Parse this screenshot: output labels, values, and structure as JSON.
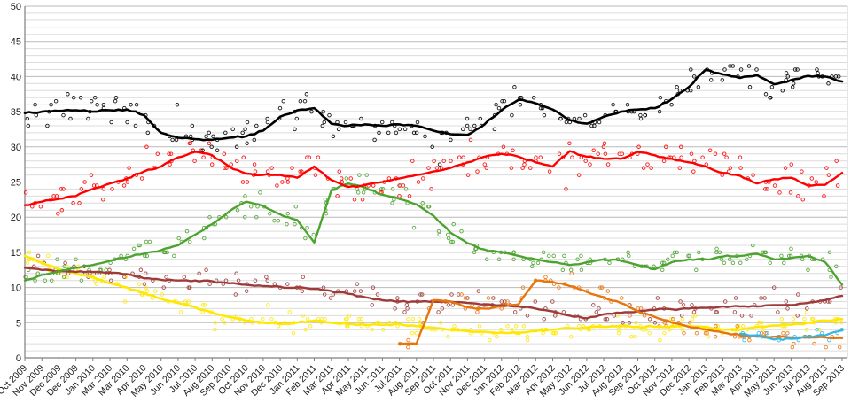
{
  "page": {
    "background": "#ffffff",
    "plot_background": "#ffffff"
  },
  "chart_data": {
    "type": "scatter",
    "subtype": "poll-scatter-with-trend-lines",
    "title": "",
    "legend": "none",
    "grid": "horizontal, minor every 1, labeled major every 5",
    "ylim": [
      0,
      50
    ],
    "y_tick_labels": [
      "0",
      "5",
      "10",
      "15",
      "20",
      "25",
      "30",
      "35",
      "40",
      "45",
      "50"
    ],
    "gridline_minor_color": "#dcdcdc",
    "gridline_major_color": "#b9b9b9",
    "axis_color": "#7f7f7f",
    "right_border_color": "#cccccc",
    "x_tick_labels": [
      "Oct 2009",
      "Nov 2009",
      "Dec 2009",
      "Dec 2009",
      "Jan 2010",
      "Mar 2010",
      "Mar 2010",
      "Apr 2010",
      "May 2010",
      "Jun 2010",
      "Jul 2010",
      "Aug 2010",
      "Sep 2010",
      "Oct 2010",
      "Nov 2010",
      "Dec 2010",
      "Jan 2011",
      "Feb 2011",
      "Mar 2011",
      "Apr 2011",
      "May 2011",
      "Jun 2011",
      "Jul 2011",
      "Aug 2011",
      "Sep 2011",
      "Oct 2011",
      "Nov 2011",
      "Dec 2011",
      "Jan 2012",
      "Feb 2012",
      "Mar 2012",
      "Apr 2012",
      "May 2012",
      "Jun 2012",
      "Jul 2012",
      "Aug 2012",
      "Sep 2012",
      "Oct 2012",
      "Nov 2012",
      "Dec 2012",
      "Jan 2013",
      "Feb 2013",
      "Mar 2013",
      "Apr 2013",
      "May 2013",
      "Jun 2013",
      "Jul 2013",
      "Aug 2013",
      "Sep 2013"
    ],
    "series": [
      {
        "name": "black",
        "color": "#000000",
        "values": [
          34.8,
          35.0,
          35.1,
          35.2,
          35.0,
          35.2,
          35.3,
          34.5,
          32.0,
          31.3,
          31.1,
          31.0,
          31.3,
          31.5,
          32.3,
          34.3,
          35.2,
          35.5,
          33.3,
          33.0,
          33.2,
          33.0,
          33.2,
          33.0,
          32.3,
          31.8,
          31.7,
          33.2,
          35.2,
          36.7,
          36.2,
          35.3,
          33.8,
          33.3,
          34.3,
          35.0,
          35.3,
          35.5,
          36.8,
          38.5,
          41.0,
          40.3,
          39.8,
          40.2,
          38.9,
          39.5,
          40.1,
          40.0,
          39.3
        ]
      },
      {
        "name": "red",
        "color": "#fe0000",
        "values": [
          21.7,
          22.2,
          22.6,
          23.0,
          24.0,
          24.8,
          25.5,
          26.5,
          27.2,
          28.5,
          29.3,
          28.8,
          27.2,
          26.2,
          26.0,
          26.0,
          25.6,
          27.2,
          25.3,
          24.3,
          24.6,
          25.0,
          25.5,
          26.0,
          26.5,
          27.0,
          27.8,
          28.6,
          29.0,
          28.6,
          27.8,
          27.2,
          29.4,
          28.6,
          28.3,
          28.3,
          29.3,
          28.8,
          28.3,
          27.8,
          27.2,
          26.3,
          25.9,
          24.8,
          25.4,
          25.6,
          24.5,
          24.6,
          26.3
        ]
      },
      {
        "name": "green",
        "color": "#4da32f",
        "values": [
          11.0,
          11.8,
          12.3,
          12.8,
          13.2,
          13.8,
          14.3,
          14.8,
          15.3,
          16.0,
          17.5,
          19.0,
          20.8,
          22.2,
          21.6,
          20.4,
          19.6,
          16.4,
          23.8,
          24.8,
          24.2,
          23.2,
          22.6,
          21.8,
          20.2,
          17.8,
          16.3,
          15.4,
          15.0,
          14.5,
          14.0,
          13.6,
          13.2,
          13.6,
          14.0,
          13.8,
          13.2,
          12.6,
          13.6,
          14.0,
          14.0,
          14.4,
          14.5,
          14.8,
          14.0,
          14.2,
          14.5,
          13.6,
          10.4
        ]
      },
      {
        "name": "dark-red",
        "color": "#9e3a38",
        "values": [
          12.8,
          12.5,
          12.3,
          12.2,
          12.2,
          12.1,
          11.9,
          11.3,
          11.1,
          11.0,
          11.0,
          10.9,
          10.6,
          10.4,
          10.2,
          10.1,
          10.0,
          9.8,
          9.5,
          9.1,
          8.6,
          8.2,
          8.0,
          8.0,
          8.0,
          8.0,
          7.8,
          7.6,
          7.5,
          7.3,
          7.0,
          6.6,
          6.0,
          5.6,
          6.2,
          6.4,
          6.6,
          6.8,
          6.9,
          7.0,
          7.1,
          7.3,
          7.3,
          7.3,
          7.5,
          7.5,
          7.8,
          8.2,
          8.8
        ]
      },
      {
        "name": "yellow",
        "color": "#ffe800",
        "values": [
          14.5,
          13.5,
          12.6,
          12.0,
          11.5,
          10.6,
          10.0,
          9.2,
          8.4,
          7.8,
          7.2,
          6.4,
          5.8,
          5.3,
          5.0,
          4.8,
          5.0,
          5.3,
          5.0,
          4.8,
          4.7,
          4.7,
          4.8,
          4.5,
          4.3,
          4.0,
          3.8,
          3.7,
          3.6,
          3.5,
          3.8,
          4.0,
          4.2,
          4.3,
          4.4,
          4.5,
          4.4,
          4.4,
          4.5,
          4.5,
          4.4,
          4.0,
          4.0,
          4.4,
          4.6,
          4.7,
          5.0,
          5.3,
          5.5
        ]
      },
      {
        "name": "orange",
        "color": "#e8740c",
        "values": [
          null,
          null,
          null,
          null,
          null,
          null,
          null,
          null,
          null,
          null,
          null,
          null,
          null,
          null,
          null,
          null,
          null,
          null,
          null,
          null,
          null,
          null,
          2.0,
          2.0,
          8.2,
          8.0,
          7.2,
          7.0,
          7.3,
          7.6,
          11.0,
          10.8,
          10.2,
          9.4,
          8.6,
          7.8,
          6.6,
          5.8,
          5.0,
          4.4,
          4.0,
          3.6,
          3.2,
          3.0,
          3.0,
          2.9,
          2.9,
          2.9,
          2.8
        ]
      },
      {
        "name": "light-blue",
        "color": "#2fb5e8",
        "values": [
          null,
          null,
          null,
          null,
          null,
          null,
          null,
          null,
          null,
          null,
          null,
          null,
          null,
          null,
          null,
          null,
          null,
          null,
          null,
          null,
          null,
          null,
          null,
          null,
          null,
          null,
          null,
          null,
          null,
          null,
          null,
          null,
          null,
          null,
          null,
          null,
          null,
          null,
          null,
          null,
          null,
          null,
          3.4,
          3.2,
          2.6,
          2.7,
          3.0,
          3.2,
          3.9
        ]
      }
    ]
  }
}
